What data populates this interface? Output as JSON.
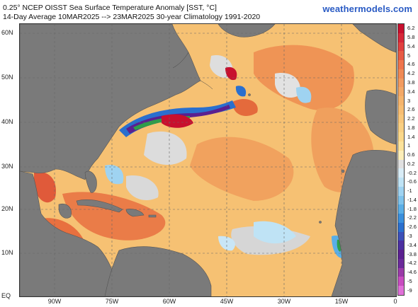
{
  "header": {
    "title_line1": "0.25° NCEP OISST Sea Surface Temperature Anomaly [SST, °C]",
    "title_line2": "14-Day Average 10MAR2025 --> 23MAR2025   30-year Climatology 1991-2020",
    "brand": "weathermodels.com"
  },
  "map": {
    "lat_labels": [
      "60N",
      "50N",
      "40N",
      "30N",
      "20N",
      "10N",
      "EQ"
    ],
    "lon_labels": [
      "90W",
      "75W",
      "60W",
      "45W",
      "30W",
      "15W",
      "0"
    ],
    "land_color": "#7a7a7a",
    "ocean_base_color": "#fbd88a",
    "grid": "dashed"
  },
  "colorbar": {
    "labels": [
      "6.2",
      "5.8",
      "5.4",
      "5",
      "4.6",
      "4.2",
      "3.8",
      "3.4",
      "3",
      "2.6",
      "2.2",
      "1.8",
      "1.4",
      "1",
      "0.6",
      "0.2",
      "-0.2",
      "-0.6",
      "-1",
      "-1.4",
      "-1.8",
      "-2.2",
      "-2.6",
      "-3",
      "-3.4",
      "-3.8",
      "-4.2",
      "-4.6",
      "-5",
      "-9"
    ],
    "colors": [
      "#c8102e",
      "#d62839",
      "#e0403f",
      "#e85a45",
      "#ef754d",
      "#f08a55",
      "#f29b5f",
      "#f3a866",
      "#f5b46c",
      "#f7bd72",
      "#f8c67a",
      "#f9cf82",
      "#fbd88a",
      "#fce29a",
      "#fdeeb8",
      "#e0e0e0",
      "#d8ecf6",
      "#bfe3f5",
      "#9fd3f1",
      "#7fc3ec",
      "#5aaee6",
      "#3a8fdc",
      "#2a6fce",
      "#3b4fb8",
      "#4b2fa0",
      "#5a2090",
      "#6a2a9a",
      "#9a3aa8",
      "#c84cc0",
      "#e070d8"
    ]
  }
}
